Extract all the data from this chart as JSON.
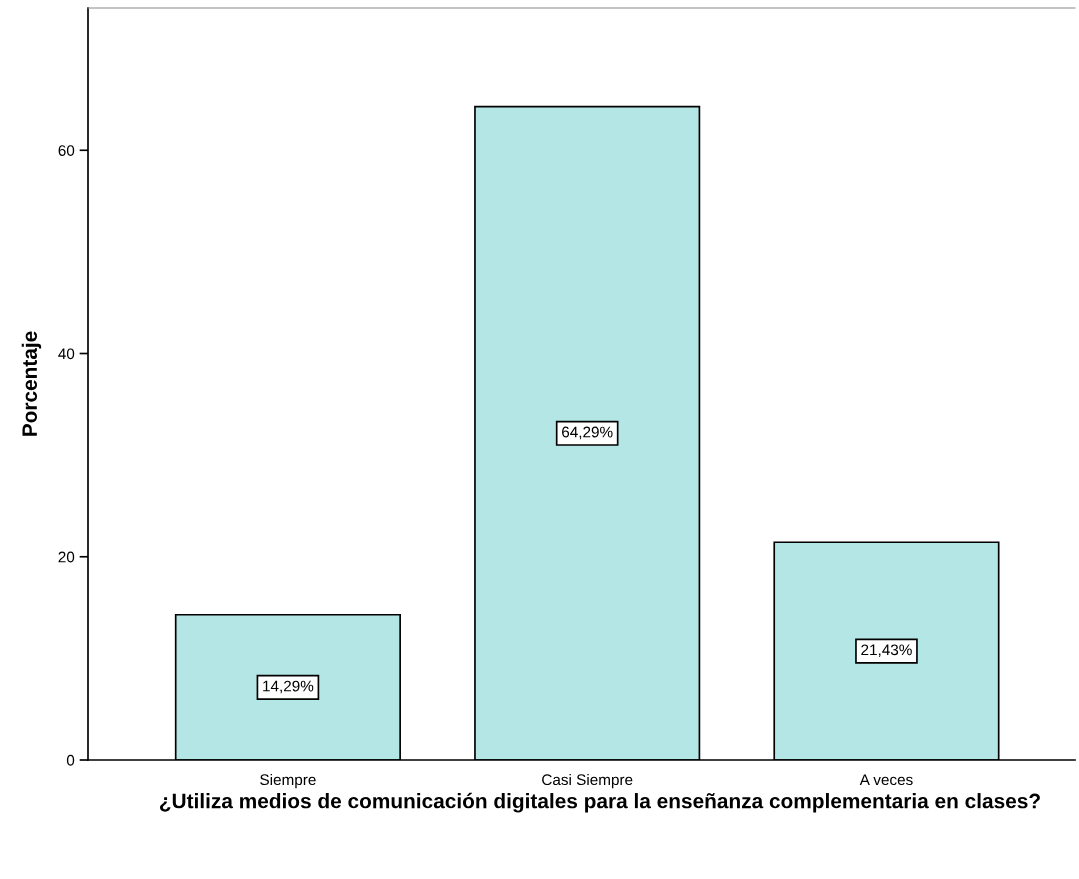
{
  "chart_data": {
    "type": "bar",
    "xlabel": "¿Utiliza medios de comunicación digitales para la enseñanza complementaria en clases?",
    "ylabel": "Porcentaje",
    "categories": [
      "Siempre",
      "Casi Siempre",
      "A veces"
    ],
    "values": [
      14.29,
      64.29,
      21.43
    ],
    "value_labels": [
      "14,29%",
      "64,29%",
      "21,43%"
    ],
    "color": "#b4e6e6",
    "ylim": [
      0,
      74
    ],
    "yticks": [
      0,
      20,
      40,
      60
    ],
    "grid": false,
    "legend": false
  }
}
